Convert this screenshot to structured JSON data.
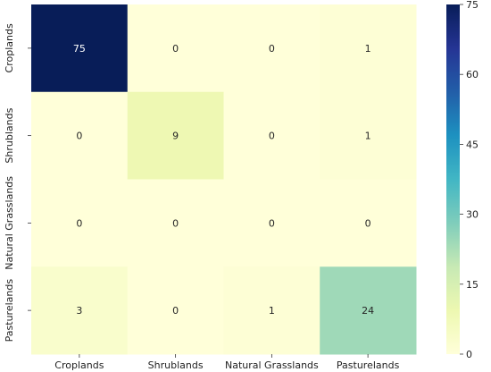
{
  "chart_data": {
    "type": "heatmap",
    "title": "",
    "xlabel": "",
    "ylabel": "",
    "x_categories": [
      "Croplands",
      "Shrublands",
      "Natural Grasslands",
      "Pasturelands"
    ],
    "y_categories": [
      "Croplands",
      "Shrublands",
      "Natural Grasslands",
      "Pasturelands"
    ],
    "values": [
      [
        75,
        0,
        0,
        1
      ],
      [
        0,
        9,
        0,
        1
      ],
      [
        0,
        0,
        0,
        0
      ],
      [
        3,
        0,
        1,
        24
      ]
    ],
    "colorbar": {
      "min": 0,
      "max": 75,
      "ticks": [
        0,
        15,
        30,
        45,
        60,
        75
      ],
      "colormap": "YlGnBu",
      "low_color": "#ffffd9",
      "high_color": "#081d58"
    },
    "grid": false,
    "legend": "colorbar-right"
  }
}
